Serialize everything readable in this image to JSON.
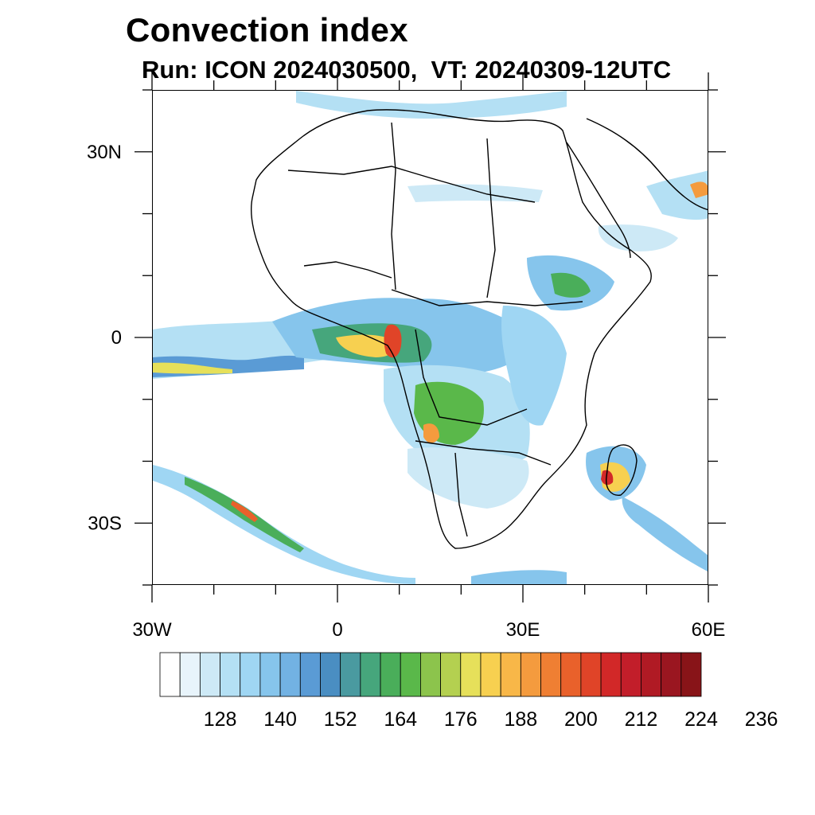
{
  "title": "Convection index",
  "subtitle": "Run: ICON 2024030500,  VT: 20240309-12UTC",
  "map": {
    "lon_range": [
      -30,
      60
    ],
    "lat_range": [
      -40,
      40
    ],
    "lat_ticks": [
      {
        "lat": 30,
        "label": "30N"
      },
      {
        "lat": 0,
        "label": "0"
      },
      {
        "lat": -30,
        "label": "30S"
      }
    ],
    "lon_ticks": [
      {
        "lon": -30,
        "label": "30W"
      },
      {
        "lon": 0,
        "label": "0"
      },
      {
        "lon": 30,
        "label": "30E"
      },
      {
        "lon": 60,
        "label": "60E"
      }
    ]
  },
  "colorbar": {
    "colors": [
      "#ffffff",
      "#e8f4fb",
      "#cde9f6",
      "#b4e0f4",
      "#9fd6f3",
      "#86c5ec",
      "#72b2e3",
      "#5a9bd5",
      "#4a8ec2",
      "#4a9aa0",
      "#46a67c",
      "#4aae5a",
      "#5ab84a",
      "#8cc44c",
      "#b4d050",
      "#e6e05a",
      "#f7d050",
      "#f8b748",
      "#f49b3e",
      "#ef7f33",
      "#e9612b",
      "#e04428",
      "#d22828",
      "#c21e2a",
      "#b01a24",
      "#9a1620",
      "#881418"
    ],
    "labels": [
      "128",
      "140",
      "152",
      "164",
      "176",
      "188",
      "200",
      "212",
      "224",
      "236"
    ]
  }
}
